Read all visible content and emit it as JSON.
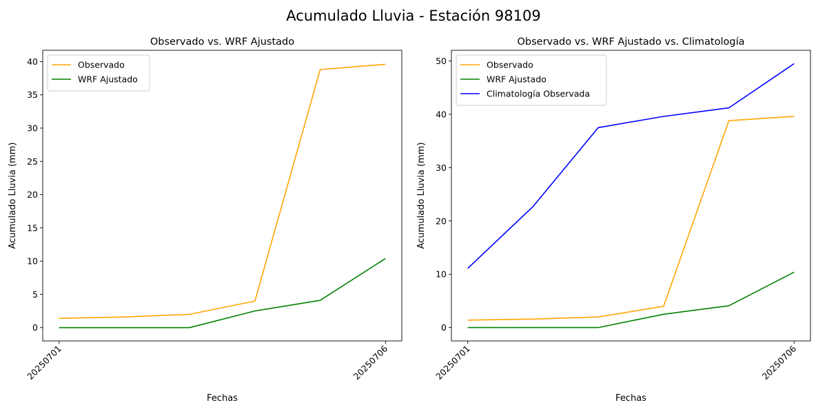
{
  "figure": {
    "suptitle": "Acumulado Lluvia - Estación 98109"
  },
  "chart_data": [
    {
      "type": "line",
      "title": "Observado vs. WRF Ajustado",
      "xlabel": "Fechas",
      "ylabel": "Acumulado Lluvia (mm)",
      "x": [
        "20250701",
        "20250702",
        "20250703",
        "20250704",
        "20250705",
        "20250706"
      ],
      "xticks": [
        "20250701",
        "20250706"
      ],
      "yticks": [
        0,
        5,
        10,
        15,
        20,
        25,
        30,
        35,
        40
      ],
      "ylim": [
        -2.0,
        41.7
      ],
      "legend": "top-left",
      "grid": false,
      "series": [
        {
          "name": "Observado",
          "color": "#ffa500",
          "values": [
            1.4,
            1.6,
            2.0,
            4.0,
            38.8,
            39.6
          ]
        },
        {
          "name": "WRF Ajustado",
          "color": "#008000",
          "values": [
            0.0,
            0.0,
            0.0,
            2.5,
            4.1,
            10.4
          ]
        }
      ]
    },
    {
      "type": "line",
      "title": "Observado vs. WRF Ajustado vs. Climatología",
      "xlabel": "Fechas",
      "ylabel": "Acumulado Lluvia (mm)",
      "x": [
        "20250701",
        "20250702",
        "20250703",
        "20250704",
        "20250705",
        "20250706"
      ],
      "xticks": [
        "20250701",
        "20250706"
      ],
      "yticks": [
        0,
        10,
        20,
        30,
        40,
        50
      ],
      "ylim": [
        -2.5,
        52.0
      ],
      "legend": "top-left",
      "grid": false,
      "series": [
        {
          "name": "Observado",
          "color": "#ffa500",
          "values": [
            1.4,
            1.6,
            2.0,
            4.0,
            38.8,
            39.6
          ]
        },
        {
          "name": "WRF Ajustado",
          "color": "#008000",
          "values": [
            0.0,
            0.0,
            0.0,
            2.5,
            4.1,
            10.4
          ]
        },
        {
          "name": "Climatología Observada",
          "color": "#0000ff",
          "values": [
            11.1,
            22.7,
            37.5,
            39.6,
            41.2,
            49.5
          ]
        }
      ]
    }
  ]
}
